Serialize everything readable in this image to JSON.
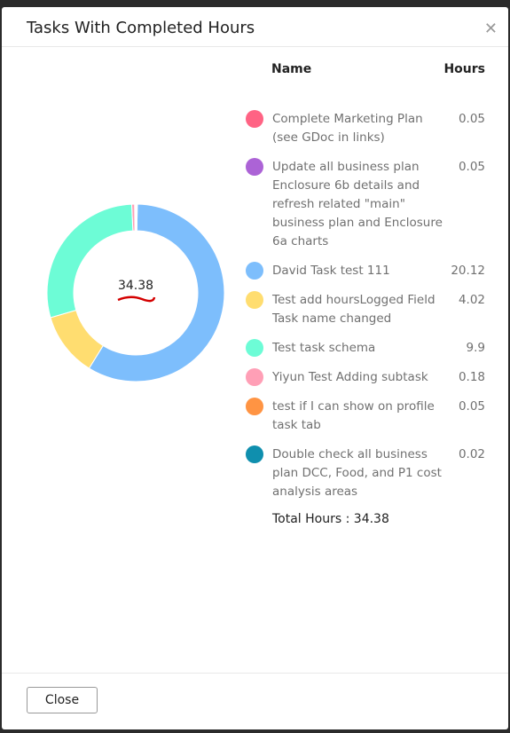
{
  "dialog": {
    "title": "Tasks With Completed Hours",
    "close_button": "Close"
  },
  "chart_data": {
    "type": "donut",
    "categories": [
      "Complete Marketing Plan (see GDoc in links)",
      "Update all business plan Enclosure 6b details and refresh related \"main\" business plan and Enclosure 6a charts",
      "David Task test 111",
      "Test add hoursLogged Field Task name changed",
      "Test task schema",
      "Yiyun Test Adding subtask",
      "test if I can show on profile task tab",
      "Double check all business plan DCC, Food, and P1 cost analysis areas"
    ],
    "values": [
      0.05,
      0.05,
      20.12,
      4.02,
      9.9,
      0.18,
      0.05,
      0.02
    ],
    "colors": [
      "#ff6384",
      "#ac63d6",
      "#7dbefc",
      "#ffdd70",
      "#6dfcd6",
      "#ff9fb6",
      "#ff9443",
      "#0f8fae"
    ],
    "name_header": "Name",
    "hours_header": "Hours",
    "total_label": "Total Hours :",
    "total": 34.38
  }
}
